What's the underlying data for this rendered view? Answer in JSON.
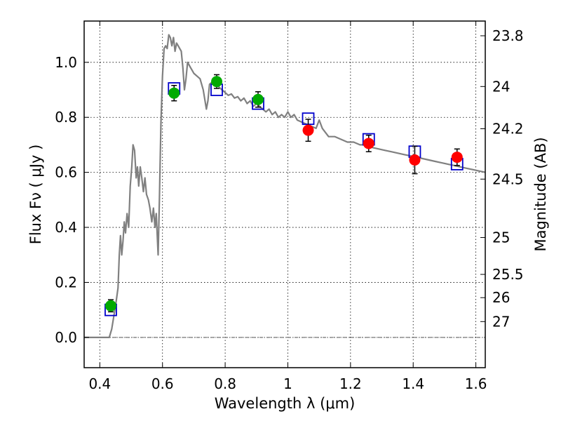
{
  "chart_data": {
    "type": "scatter",
    "xlabel": "Wavelength  λ (μm)",
    "ylabel": "Flux  Fν  ( μJy )",
    "ylabel_right": "Magnitude (AB)",
    "xlim": [
      0.35,
      1.63
    ],
    "ylim": [
      -0.11,
      1.15
    ],
    "grid": true,
    "x_ticks": [
      {
        "value": 0.4,
        "label": "0.4"
      },
      {
        "value": 0.6,
        "label": "0.6"
      },
      {
        "value": 0.8,
        "label": "0.8"
      },
      {
        "value": 1.0,
        "label": "1"
      },
      {
        "value": 1.2,
        "label": "1.2"
      },
      {
        "value": 1.4,
        "label": "1.4"
      },
      {
        "value": 1.6,
        "label": "1.6"
      }
    ],
    "y_ticks": [
      {
        "value": 0.0,
        "label": "0.0"
      },
      {
        "value": 0.2,
        "label": "0.2"
      },
      {
        "value": 0.4,
        "label": "0.4"
      },
      {
        "value": 0.6,
        "label": "0.6"
      },
      {
        "value": 0.8,
        "label": "0.8"
      },
      {
        "value": 1.0,
        "label": "1.0"
      }
    ],
    "right_ticks": [
      {
        "mag": 23.8,
        "label": "23.8"
      },
      {
        "mag": 24.0,
        "label": "24"
      },
      {
        "mag": 24.2,
        "label": "24.2"
      },
      {
        "mag": 24.5,
        "label": "24.5"
      },
      {
        "mag": 25.0,
        "label": "25"
      },
      {
        "mag": 25.5,
        "label": "25.5"
      },
      {
        "mag": 26.0,
        "label": "26"
      },
      {
        "mag": 27.0,
        "label": "27"
      }
    ],
    "series": [
      {
        "kind": "line",
        "color": "#808080",
        "points": [
          [
            0.35,
            0.0
          ],
          [
            0.43,
            0.0
          ],
          [
            0.438,
            0.03
          ],
          [
            0.445,
            0.08
          ],
          [
            0.452,
            0.13
          ],
          [
            0.458,
            0.18
          ],
          [
            0.462,
            0.3
          ],
          [
            0.466,
            0.37
          ],
          [
            0.47,
            0.3
          ],
          [
            0.474,
            0.35
          ],
          [
            0.478,
            0.42
          ],
          [
            0.482,
            0.38
          ],
          [
            0.487,
            0.45
          ],
          [
            0.492,
            0.4
          ],
          [
            0.497,
            0.55
          ],
          [
            0.502,
            0.62
          ],
          [
            0.506,
            0.7
          ],
          [
            0.511,
            0.68
          ],
          [
            0.516,
            0.58
          ],
          [
            0.52,
            0.62
          ],
          [
            0.524,
            0.55
          ],
          [
            0.529,
            0.62
          ],
          [
            0.534,
            0.58
          ],
          [
            0.539,
            0.53
          ],
          [
            0.544,
            0.58
          ],
          [
            0.549,
            0.52
          ],
          [
            0.555,
            0.5
          ],
          [
            0.56,
            0.47
          ],
          [
            0.566,
            0.42
          ],
          [
            0.571,
            0.47
          ],
          [
            0.576,
            0.4
          ],
          [
            0.58,
            0.45
          ],
          [
            0.586,
            0.3
          ],
          [
            0.59,
            0.5
          ],
          [
            0.595,
            0.78
          ],
          [
            0.6,
            0.95
          ],
          [
            0.605,
            1.05
          ],
          [
            0.61,
            1.06
          ],
          [
            0.615,
            1.05
          ],
          [
            0.62,
            1.1
          ],
          [
            0.625,
            1.09
          ],
          [
            0.63,
            1.06
          ],
          [
            0.635,
            1.09
          ],
          [
            0.64,
            1.04
          ],
          [
            0.645,
            1.07
          ],
          [
            0.65,
            1.06
          ],
          [
            0.655,
            1.05
          ],
          [
            0.66,
            1.04
          ],
          [
            0.665,
            0.98
          ],
          [
            0.67,
            0.9
          ],
          [
            0.675,
            0.94
          ],
          [
            0.68,
            1.0
          ],
          [
            0.685,
            0.99
          ],
          [
            0.69,
            0.98
          ],
          [
            0.695,
            0.97
          ],
          [
            0.7,
            0.96
          ],
          [
            0.71,
            0.95
          ],
          [
            0.72,
            0.94
          ],
          [
            0.73,
            0.9
          ],
          [
            0.74,
            0.83
          ],
          [
            0.745,
            0.86
          ],
          [
            0.75,
            0.92
          ],
          [
            0.76,
            0.93
          ],
          [
            0.77,
            0.92
          ],
          [
            0.78,
            0.91
          ],
          [
            0.79,
            0.9
          ],
          [
            0.8,
            0.89
          ],
          [
            0.81,
            0.88
          ],
          [
            0.82,
            0.885
          ],
          [
            0.83,
            0.87
          ],
          [
            0.84,
            0.875
          ],
          [
            0.85,
            0.86
          ],
          [
            0.86,
            0.87
          ],
          [
            0.87,
            0.85
          ],
          [
            0.88,
            0.86
          ],
          [
            0.89,
            0.84
          ],
          [
            0.9,
            0.85
          ],
          [
            0.91,
            0.84
          ],
          [
            0.92,
            0.83
          ],
          [
            0.93,
            0.82
          ],
          [
            0.94,
            0.83
          ],
          [
            0.95,
            0.81
          ],
          [
            0.96,
            0.82
          ],
          [
            0.97,
            0.8
          ],
          [
            0.98,
            0.81
          ],
          [
            0.99,
            0.8
          ],
          [
            1.0,
            0.82
          ],
          [
            1.01,
            0.8
          ],
          [
            1.02,
            0.81
          ],
          [
            1.03,
            0.79
          ],
          [
            1.05,
            0.78
          ],
          [
            1.07,
            0.77
          ],
          [
            1.09,
            0.76
          ],
          [
            1.1,
            0.79
          ],
          [
            1.11,
            0.76
          ],
          [
            1.13,
            0.73
          ],
          [
            1.15,
            0.73
          ],
          [
            1.17,
            0.72
          ],
          [
            1.19,
            0.71
          ],
          [
            1.21,
            0.71
          ],
          [
            1.23,
            0.7
          ],
          [
            1.25,
            0.7
          ],
          [
            1.27,
            0.69
          ],
          [
            1.29,
            0.685
          ],
          [
            1.31,
            0.68
          ],
          [
            1.33,
            0.675
          ],
          [
            1.35,
            0.67
          ],
          [
            1.37,
            0.665
          ],
          [
            1.39,
            0.66
          ],
          [
            1.41,
            0.655
          ],
          [
            1.43,
            0.65
          ],
          [
            1.45,
            0.645
          ],
          [
            1.47,
            0.64
          ],
          [
            1.49,
            0.635
          ],
          [
            1.51,
            0.63
          ],
          [
            1.53,
            0.625
          ],
          [
            1.55,
            0.62
          ],
          [
            1.57,
            0.615
          ],
          [
            1.59,
            0.61
          ],
          [
            1.61,
            0.605
          ],
          [
            1.63,
            0.6
          ]
        ]
      },
      {
        "kind": "squares",
        "color": "#0000cc",
        "points": [
          [
            0.435,
            0.1
          ],
          [
            0.637,
            0.905
          ],
          [
            0.773,
            0.9
          ],
          [
            0.905,
            0.85
          ],
          [
            1.065,
            0.795
          ],
          [
            1.258,
            0.72
          ],
          [
            1.405,
            0.675
          ],
          [
            1.54,
            0.63
          ]
        ]
      },
      {
        "kind": "errorbar",
        "color": "#00aa00",
        "points": [
          {
            "x": 0.435,
            "y": 0.115,
            "err": 0.022
          },
          {
            "x": 0.637,
            "y": 0.888,
            "err": 0.028
          },
          {
            "x": 0.773,
            "y": 0.93,
            "err": 0.025
          },
          {
            "x": 0.905,
            "y": 0.865,
            "err": 0.028
          }
        ]
      },
      {
        "kind": "errorbar",
        "color": "#ff0000",
        "points": [
          {
            "x": 1.065,
            "y": 0.753,
            "err": 0.04
          },
          {
            "x": 1.258,
            "y": 0.705,
            "err": 0.03
          },
          {
            "x": 1.405,
            "y": 0.645,
            "err": 0.05
          },
          {
            "x": 1.54,
            "y": 0.655,
            "err": 0.03
          }
        ]
      }
    ]
  }
}
